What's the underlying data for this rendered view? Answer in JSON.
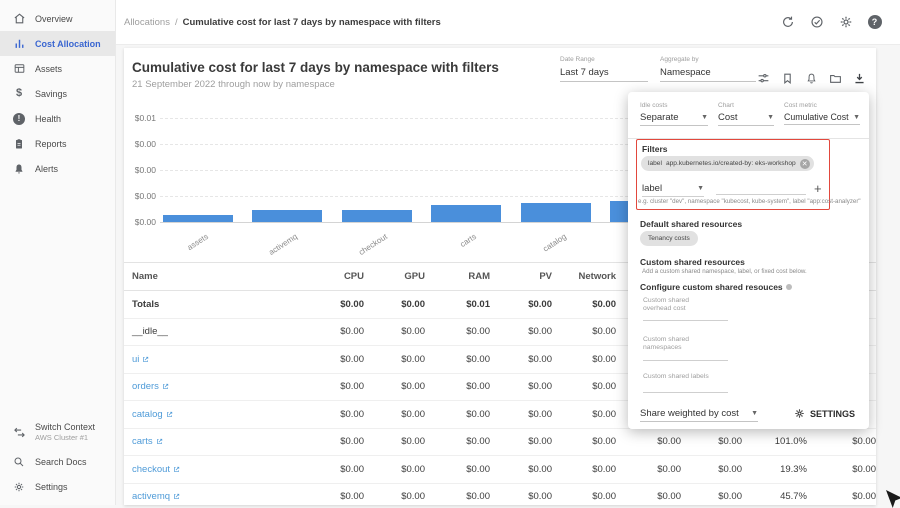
{
  "sidebar": {
    "items": [
      {
        "icon": "home-icon",
        "label": "Overview"
      },
      {
        "icon": "bar-chart-icon",
        "label": "Cost Allocation"
      },
      {
        "icon": "assets-grid-icon",
        "label": "Assets"
      },
      {
        "icon": "dollar-icon",
        "label": "Savings"
      },
      {
        "icon": "health-alert-icon",
        "label": "Health"
      },
      {
        "icon": "clipboard-icon",
        "label": "Reports"
      },
      {
        "icon": "bell-icon",
        "label": "Alerts"
      }
    ],
    "footer": {
      "switch_context": {
        "icon": "swap-icon",
        "label": "Switch Context",
        "sub": "AWS Cluster #1"
      },
      "search_docs": {
        "icon": "search-icon",
        "label": "Search Docs"
      },
      "settings": {
        "icon": "gear-icon",
        "label": "Settings"
      }
    }
  },
  "header": {
    "breadcrumb_parent": "Allocations",
    "breadcrumb_separator": "/",
    "breadcrumb_current": "Cumulative cost for last 7 days by namespace with filters",
    "icons": [
      "refresh-icon",
      "check-circle-icon",
      "gear-icon",
      "help-icon"
    ]
  },
  "page": {
    "title": "Cumulative cost for last 7 days by namespace with filters",
    "subtitle": "21 September 2022 through now by namespace",
    "date_range": {
      "label": "Date Range",
      "value": "Last 7 days"
    },
    "aggregate_by": {
      "label": "Aggregate by",
      "value": "Namespace"
    },
    "toolbar_icons": [
      "tune-icon",
      "bookmark-icon",
      "bell-icon",
      "folder-icon",
      "download-icon"
    ]
  },
  "chart_data": {
    "type": "bar",
    "title": "Cumulative cost for last 7 days by namespace with filters",
    "categories": [
      "assets",
      "activemq",
      "checkout",
      "carts",
      "catalog",
      ""
    ],
    "values": [
      0.0007,
      0.0012,
      0.0012,
      0.0016,
      0.0018,
      0.002
    ],
    "ylim": [
      0,
      0.01
    ],
    "ytick_labels_bottom_up": [
      "$0.00",
      "$0.00",
      "$0.00",
      "$0.00",
      "$0.01"
    ],
    "xlabel": "",
    "ylabel": "",
    "grid": "dashed horizontal",
    "legend": "none",
    "bar_color": "#4a8fdb"
  },
  "table": {
    "columns": [
      "Name",
      "CPU",
      "GPU",
      "RAM",
      "PV",
      "Network",
      "",
      "",
      "",
      ""
    ],
    "rows": [
      {
        "name": "Totals",
        "link": false,
        "bold": true,
        "values": [
          "$0.00",
          "$0.00",
          "$0.01",
          "$0.00",
          "$0.00",
          "",
          "",
          "",
          ""
        ]
      },
      {
        "name": "__idle__",
        "link": false,
        "bold": false,
        "values": [
          "$0.00",
          "$0.00",
          "$0.00",
          "$0.00",
          "$0.00",
          "",
          "",
          "",
          ""
        ]
      },
      {
        "name": "ui",
        "link": true,
        "bold": false,
        "values": [
          "$0.00",
          "$0.00",
          "$0.00",
          "$0.00",
          "$0.00",
          "",
          "",
          "",
          ""
        ]
      },
      {
        "name": "orders",
        "link": true,
        "bold": false,
        "values": [
          "$0.00",
          "$0.00",
          "$0.00",
          "$0.00",
          "$0.00",
          "",
          "",
          "",
          ""
        ]
      },
      {
        "name": "catalog",
        "link": true,
        "bold": false,
        "values": [
          "$0.00",
          "$0.00",
          "$0.00",
          "$0.00",
          "$0.00",
          "",
          "",
          "",
          ""
        ]
      },
      {
        "name": "carts",
        "link": true,
        "bold": false,
        "values": [
          "$0.00",
          "$0.00",
          "$0.00",
          "$0.00",
          "$0.00",
          "$0.00",
          "$0.00",
          "101.0%",
          "$0.00"
        ]
      },
      {
        "name": "checkout",
        "link": true,
        "bold": false,
        "values": [
          "$0.00",
          "$0.00",
          "$0.00",
          "$0.00",
          "$0.00",
          "$0.00",
          "$0.00",
          "19.3%",
          "$0.00"
        ]
      },
      {
        "name": "activemq",
        "link": true,
        "bold": false,
        "values": [
          "$0.00",
          "$0.00",
          "$0.00",
          "$0.00",
          "$0.00",
          "$0.00",
          "$0.00",
          "45.7%",
          "$0.00"
        ]
      }
    ]
  },
  "settings_panel": {
    "idle_costs": {
      "label": "Idle costs",
      "value": "Separate"
    },
    "chart": {
      "label": "Chart",
      "value": "Cost"
    },
    "cost_metric": {
      "label": "Cost metric",
      "value": "Cumulative Cost"
    },
    "filters": {
      "title": "Filters",
      "chip_key": "label",
      "chip_value": "app.kubernetes.io/created-by: eks-workshop",
      "field_key": "label",
      "helper": "e.g. cluster \"dev\", namespace \"kubecost, kube-system\", label \"app:cost-analyzer\"",
      "highlight_color": "#e2483d"
    },
    "default_shared": {
      "title": "Default shared resources",
      "chip": "Tenancy costs"
    },
    "custom_shared": {
      "title": "Custom shared resources",
      "description": "Add a custom shared namespace, label, or fixed cost below.",
      "configure_title": "Configure custom shared resouces",
      "overhead_label": "Custom shared overhead cost",
      "namespaces_label": "Custom shared namespaces",
      "labels_label": "Custom shared labels"
    },
    "share_weighted_value": "Share weighted by cost",
    "settings_button": "SETTINGS"
  }
}
